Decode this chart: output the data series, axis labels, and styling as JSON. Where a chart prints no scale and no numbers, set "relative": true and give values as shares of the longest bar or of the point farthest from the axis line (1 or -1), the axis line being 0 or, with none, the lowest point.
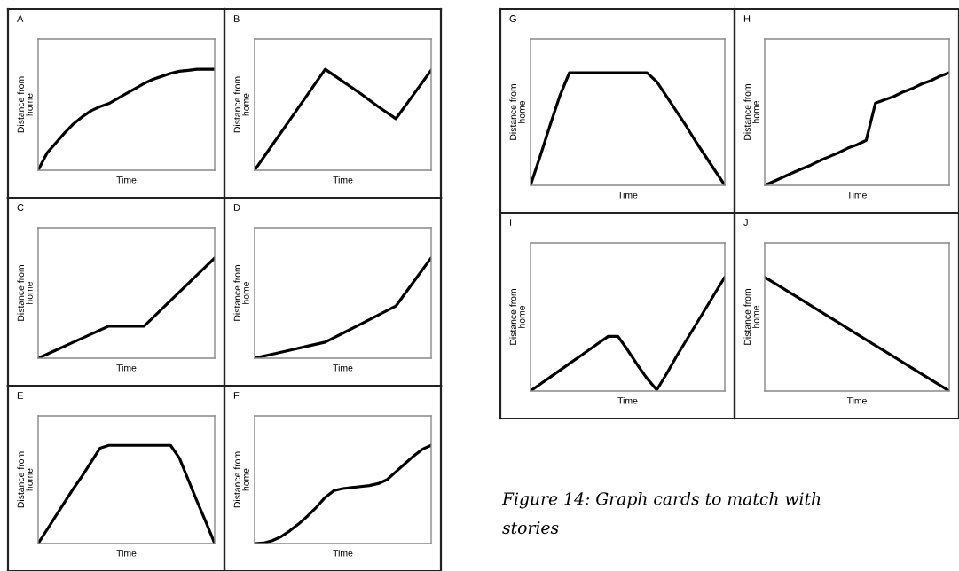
{
  "chart_data": [
    {
      "type": "line",
      "title": "A",
      "xlabel": "Time",
      "ylabel": "Distance from\nhome",
      "relative": true,
      "color": "#000000",
      "tick_labels": false,
      "categories": [
        null,
        null,
        null,
        null,
        null,
        null,
        null,
        null,
        null,
        null,
        null,
        null,
        null,
        null,
        null,
        null,
        null,
        null,
        null,
        null,
        null
      ],
      "values": [
        0,
        0.17,
        0.27,
        0.37,
        0.46,
        0.53,
        0.59,
        0.63,
        0.66,
        0.71,
        0.76,
        0.81,
        0.86,
        0.9,
        0.93,
        0.96,
        0.98,
        0.99,
        1,
        1,
        1
      ]
    },
    {
      "type": "line",
      "title": "B",
      "xlabel": "Time",
      "ylabel": "Distance from\nhome",
      "relative": true,
      "color": "#000000",
      "tick_labels": false,
      "categories": [
        null,
        null,
        null,
        null,
        null,
        null,
        null,
        null,
        null,
        null,
        null
      ],
      "values": [
        0,
        0.25,
        0.5,
        0.75,
        1,
        0.88,
        0.76,
        0.63,
        0.51,
        0.75,
        0.99
      ]
    },
    {
      "type": "line",
      "title": "C",
      "xlabel": "Time",
      "ylabel": "Distance from\nhome",
      "relative": true,
      "color": "#000000",
      "tick_labels": false,
      "categories": [
        null,
        null,
        null,
        null,
        null,
        null,
        null,
        null,
        null,
        null,
        null
      ],
      "values": [
        0,
        0.08,
        0.16,
        0.24,
        0.32,
        0.32,
        0.32,
        0.49,
        0.66,
        0.83,
        1
      ]
    },
    {
      "type": "line",
      "title": "D",
      "xlabel": "Time",
      "ylabel": "Distance from\nhome",
      "relative": true,
      "color": "#000000",
      "tick_labels": false,
      "categories": [
        null,
        null,
        null,
        null,
        null,
        null,
        null,
        null,
        null,
        null,
        null
      ],
      "values": [
        0,
        0.04,
        0.08,
        0.12,
        0.16,
        0.25,
        0.34,
        0.43,
        0.52,
        0.76,
        1
      ]
    },
    {
      "type": "line",
      "title": "E",
      "xlabel": "Time",
      "ylabel": "Distance from\nhome",
      "relative": true,
      "color": "#000000",
      "tick_labels": false,
      "categories": [
        null,
        null,
        null,
        null,
        null,
        null,
        null,
        null,
        null,
        null,
        null,
        null,
        null,
        null,
        null,
        null,
        null,
        null,
        null,
        null,
        null
      ],
      "values": [
        0,
        0.14,
        0.28,
        0.42,
        0.56,
        0.69,
        0.83,
        0.97,
        1,
        1,
        1,
        1,
        1,
        1,
        1,
        1,
        0.87,
        0.65,
        0.43,
        0.22,
        0
      ]
    },
    {
      "type": "line",
      "title": "F",
      "xlabel": "Time",
      "ylabel": "Distance from\nhome",
      "relative": true,
      "color": "#000000",
      "tick_labels": false,
      "categories": [
        null,
        null,
        null,
        null,
        null,
        null,
        null,
        null,
        null,
        null,
        null,
        null,
        null,
        null,
        null,
        null,
        null,
        null,
        null,
        null,
        null
      ],
      "values": [
        0,
        0.005,
        0.03,
        0.07,
        0.13,
        0.2,
        0.28,
        0.37,
        0.47,
        0.54,
        0.56,
        0.57,
        0.58,
        0.59,
        0.61,
        0.65,
        0.73,
        0.81,
        0.89,
        0.96,
        1
      ]
    },
    {
      "type": "line",
      "title": "G",
      "xlabel": "Time",
      "ylabel": "Distance from\nhome",
      "relative": true,
      "color": "#000000",
      "tick_labels": false,
      "categories": [
        null,
        null,
        null,
        null,
        null,
        null,
        null,
        null,
        null,
        null,
        null,
        null,
        null,
        null,
        null,
        null,
        null,
        null,
        null,
        null,
        null
      ],
      "values": [
        0,
        0.26,
        0.53,
        0.79,
        1,
        1,
        1,
        1,
        1,
        1,
        1,
        1,
        1,
        0.92,
        0.79,
        0.66,
        0.53,
        0.39,
        0.26,
        0.13,
        0
      ]
    },
    {
      "type": "line",
      "title": "H",
      "xlabel": "Time",
      "ylabel": "Distance from\nhome",
      "relative": true,
      "color": "#000000",
      "tick_labels": false,
      "categories": [
        null,
        null,
        null,
        null,
        null,
        null,
        null,
        null,
        null,
        null,
        null,
        null,
        null,
        null,
        null,
        null,
        null,
        null,
        null,
        null,
        null
      ],
      "values": [
        0,
        0.036,
        0.073,
        0.11,
        0.146,
        0.18,
        0.22,
        0.255,
        0.29,
        0.33,
        0.36,
        0.4,
        0.73,
        0.76,
        0.79,
        0.83,
        0.86,
        0.9,
        0.93,
        0.97,
        1
      ]
    },
    {
      "type": "line",
      "title": "I",
      "xlabel": "Time",
      "ylabel": "Distance from\nhome",
      "relative": true,
      "color": "#000000",
      "tick_labels": false,
      "categories": [
        null,
        null,
        null,
        null,
        null,
        null,
        null,
        null,
        null,
        null,
        null,
        null,
        null,
        null,
        null,
        null,
        null,
        null,
        null,
        null,
        null
      ],
      "values": [
        0,
        0.06,
        0.12,
        0.18,
        0.24,
        0.3,
        0.36,
        0.42,
        0.48,
        0.48,
        0.36,
        0.23,
        0.11,
        0.01,
        0.15,
        0.3,
        0.44,
        0.58,
        0.72,
        0.86,
        1
      ]
    },
    {
      "type": "line",
      "title": "J",
      "xlabel": "Time",
      "ylabel": "Distance from\nhome",
      "relative": true,
      "color": "#000000",
      "tick_labels": false,
      "categories": [
        null,
        null,
        null,
        null,
        null,
        null,
        null,
        null,
        null,
        null,
        null
      ],
      "values": [
        1,
        0.9,
        0.8,
        0.7,
        0.6,
        0.5,
        0.4,
        0.3,
        0.2,
        0.1,
        0
      ],
      "annotations": [
        "Figure 14: Graph cards to match with\nstories"
      ]
    }
  ]
}
